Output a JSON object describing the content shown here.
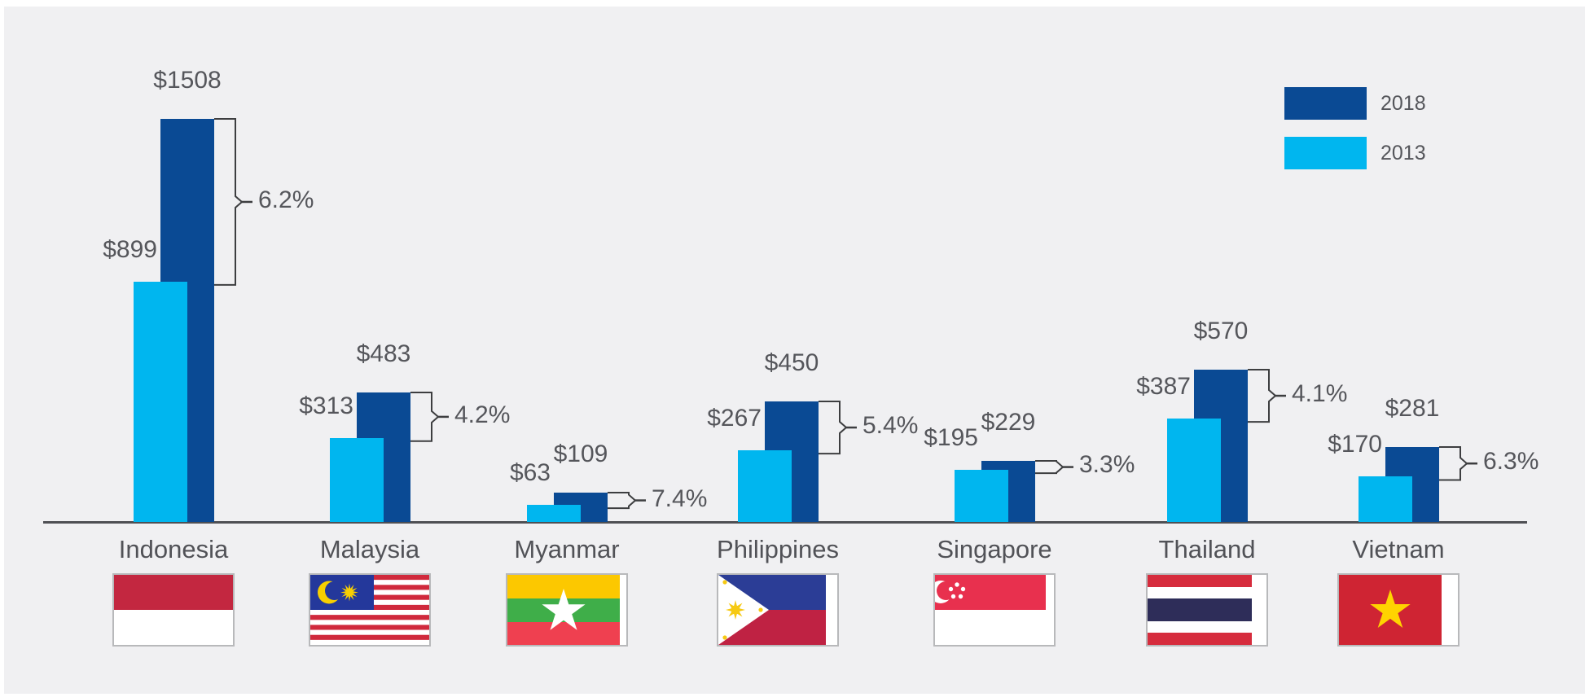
{
  "colors": {
    "bar_2018": "#0a4a94",
    "bar_2013": "#00b6ef",
    "text": "#55565b",
    "axis_line": "#4f5054",
    "panel_background": "#f0f0f2",
    "bracket_line": "#3d3e40"
  },
  "legend": {
    "position": "top-right",
    "items": [
      {
        "label": "2018",
        "color": "#0a4a94"
      },
      {
        "label": "2013",
        "color": "#00b6ef"
      }
    ]
  },
  "chart_data": {
    "type": "bar",
    "title": "",
    "categories": [
      "Indonesia",
      "Malaysia",
      "Myanmar",
      "Philippines",
      "Singapore",
      "Thailand",
      "Vietnam"
    ],
    "series": [
      {
        "name": "2018",
        "color": "#0a4a94",
        "values": [
          1508,
          483,
          109,
          450,
          229,
          570,
          281
        ]
      },
      {
        "name": "2013",
        "color": "#00b6ef",
        "values": [
          899,
          313,
          63,
          267,
          195,
          387,
          170
        ]
      }
    ],
    "value_labels_2018": [
      "$1508",
      "$483",
      "$109",
      "$450",
      "$229",
      "$570",
      "$281"
    ],
    "value_labels_2013": [
      "$899",
      "$313",
      "$63",
      "$267",
      "$195",
      "$387",
      "$170"
    ],
    "growth_labels": [
      "6.2%",
      "4.2%",
      "7.4%",
      "5.4%",
      "3.3%",
      "4.1%",
      "6.3%"
    ],
    "value_prefix": "$",
    "xlabel": "",
    "ylabel": "",
    "y_axis_shown": false,
    "grid": false,
    "legend_position": "top-right",
    "flags": [
      "indonesia",
      "malaysia",
      "myanmar",
      "philippines",
      "singapore",
      "thailand",
      "vietnam"
    ]
  }
}
